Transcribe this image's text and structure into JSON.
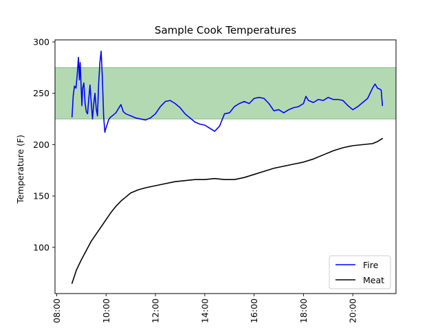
{
  "chart_data": {
    "type": "line",
    "title": "Sample Cook Temperatures",
    "xlabel": "",
    "ylabel": "Temperature (F)",
    "x_unit": "hours",
    "xlim": [
      7.93,
      21.75
    ],
    "ylim": [
      55,
      302
    ],
    "xticks": [
      {
        "value": 8,
        "label": "08:00"
      },
      {
        "value": 10,
        "label": "10:00"
      },
      {
        "value": 12,
        "label": "12:00"
      },
      {
        "value": 14,
        "label": "14:00"
      },
      {
        "value": 16,
        "label": "16:00"
      },
      {
        "value": 18,
        "label": "18:00"
      },
      {
        "value": 20,
        "label": "20:00"
      }
    ],
    "yticks": [
      100,
      150,
      200,
      250,
      300
    ],
    "grid": false,
    "legend_position": "bottom-right",
    "target_band": {
      "y_min": 225,
      "y_max": 275,
      "color": "#b3d9b3",
      "edge_color": "#7fbf7f"
    },
    "series": [
      {
        "name": "Fire",
        "color": "#0000ff",
        "x": [
          8.62,
          8.67,
          8.72,
          8.78,
          8.83,
          8.88,
          8.92,
          8.95,
          8.98,
          9.02,
          9.05,
          9.1,
          9.15,
          9.2,
          9.25,
          9.3,
          9.35,
          9.4,
          9.45,
          9.5,
          9.55,
          9.6,
          9.65,
          9.7,
          9.75,
          9.8,
          9.85,
          9.9,
          9.95,
          9.98,
          10.02,
          10.05,
          10.1,
          10.15,
          10.2,
          10.3,
          10.4,
          10.5,
          10.6,
          10.7,
          10.8,
          10.9,
          11.0,
          11.2,
          11.4,
          11.6,
          11.8,
          12.0,
          12.2,
          12.4,
          12.6,
          12.8,
          13.0,
          13.2,
          13.4,
          13.6,
          13.8,
          14.0,
          14.2,
          14.4,
          14.6,
          14.8,
          15.0,
          15.2,
          15.4,
          15.6,
          15.8,
          16.0,
          16.2,
          16.4,
          16.6,
          16.8,
          17.0,
          17.2,
          17.4,
          17.6,
          17.8,
          18.0,
          18.1,
          18.2,
          18.4,
          18.6,
          18.8,
          19.0,
          19.2,
          19.4,
          19.6,
          19.8,
          20.0,
          20.2,
          20.4,
          20.6,
          20.8,
          20.9,
          21.0,
          21.1,
          21.15,
          21.2
        ],
        "values": [
          227,
          248,
          257,
          255,
          268,
          285,
          263,
          280,
          262,
          238,
          255,
          260,
          240,
          232,
          230,
          245,
          258,
          240,
          225,
          240,
          250,
          235,
          228,
          260,
          280,
          291,
          265,
          228,
          212,
          215,
          218,
          220,
          224,
          226,
          227,
          229,
          231,
          235,
          239,
          232,
          230,
          229,
          228,
          226,
          225,
          224,
          226,
          230,
          237,
          242,
          243,
          240,
          236,
          230,
          226,
          222,
          220,
          219,
          216,
          213,
          218,
          230,
          231,
          237,
          240,
          242,
          240,
          245,
          246,
          245,
          240,
          233,
          234,
          231,
          234,
          236,
          237,
          240,
          247,
          243,
          241,
          244,
          243,
          246,
          244,
          244,
          243,
          238,
          234,
          237,
          241,
          245,
          255,
          259,
          255,
          254,
          253,
          238
        ]
      },
      {
        "name": "Meat",
        "color": "#000000",
        "x": [
          8.62,
          8.8,
          9.0,
          9.2,
          9.4,
          9.6,
          9.8,
          10.0,
          10.2,
          10.4,
          10.6,
          10.8,
          11.0,
          11.3,
          11.6,
          12.0,
          12.4,
          12.8,
          13.2,
          13.6,
          14.0,
          14.4,
          14.8,
          15.2,
          15.6,
          16.0,
          16.4,
          16.8,
          17.2,
          17.6,
          18.0,
          18.4,
          18.8,
          19.2,
          19.6,
          20.0,
          20.4,
          20.8,
          21.0,
          21.2
        ],
        "values": [
          65,
          78,
          88,
          97,
          106,
          113,
          120,
          127,
          134,
          140,
          145,
          149,
          153,
          156,
          158,
          160,
          162,
          164,
          165,
          166,
          166,
          167,
          166,
          166,
          168,
          171,
          174,
          177,
          179,
          181,
          183,
          186,
          190,
          194,
          197,
          199,
          200,
          201,
          203,
          206
        ]
      }
    ]
  }
}
